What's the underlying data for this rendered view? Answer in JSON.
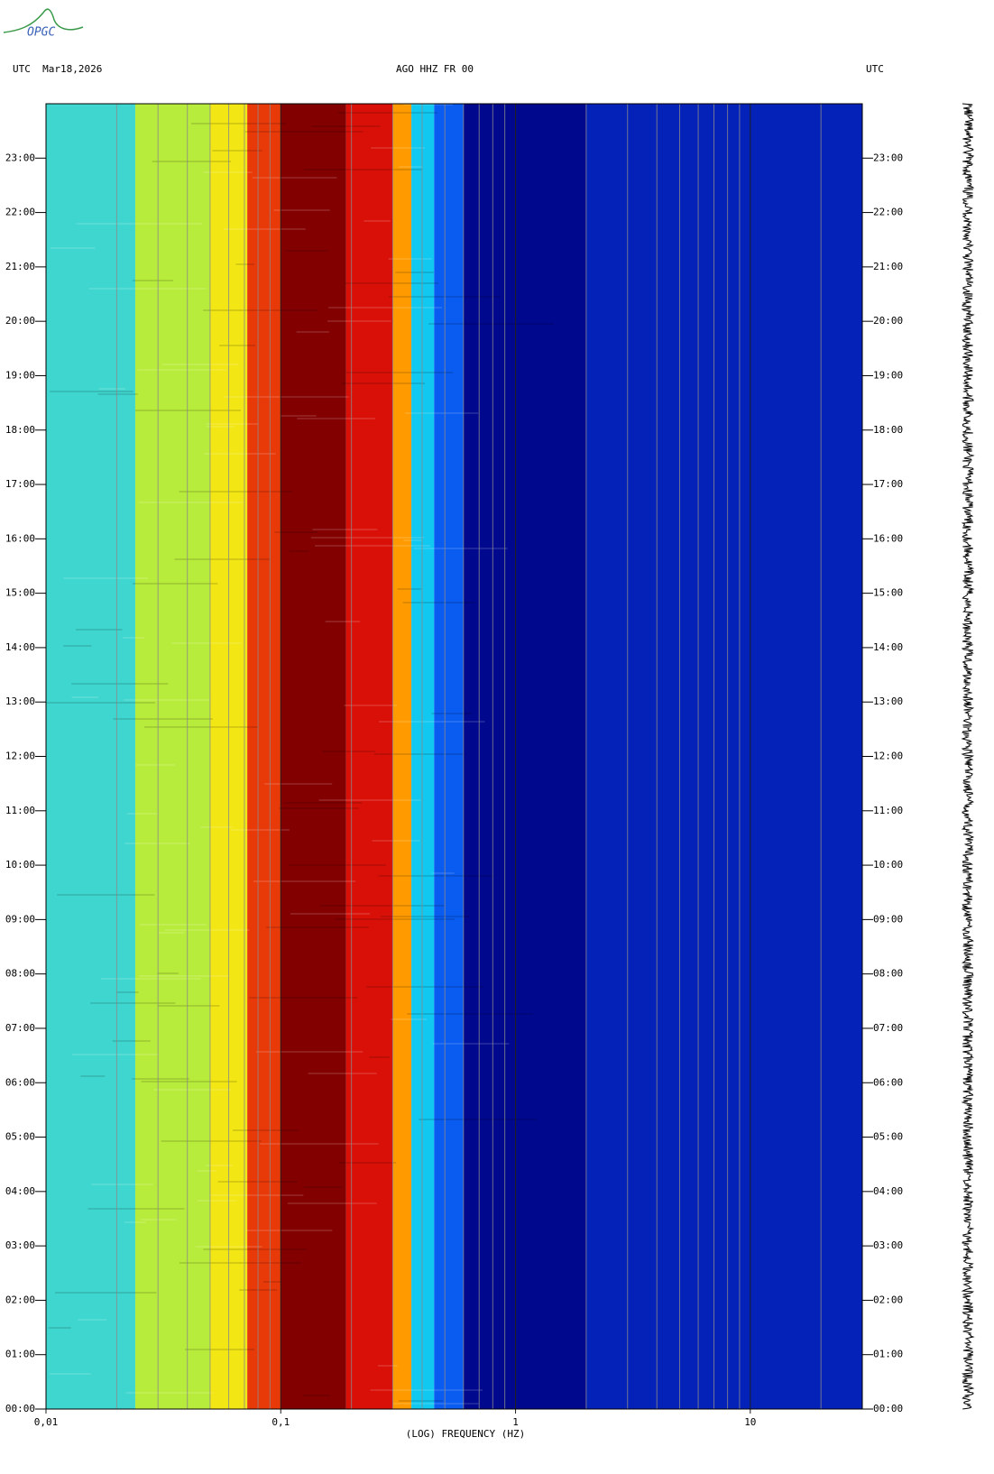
{
  "logo": "OPGC",
  "chart_data": {
    "type": "spectrogram",
    "left_header": "UTC  Mar18,2026",
    "title": "AGO HHZ FR 00",
    "right_header": "UTC",
    "xlabel": "(LOG) FREQUENCY (HZ)",
    "xscale": "log",
    "xlim": [
      0.01,
      30
    ],
    "xticks": [
      {
        "value": 0.01,
        "label": "0,01"
      },
      {
        "value": 0.1,
        "label": "0,1"
      },
      1,
      10
    ],
    "xminor": [
      0.02,
      0.03,
      0.04,
      0.05,
      0.06,
      0.07,
      0.08,
      0.09,
      0.2,
      0.3,
      0.4,
      0.5,
      0.6,
      0.7,
      0.8,
      0.9,
      2,
      3,
      4,
      5,
      6,
      7,
      8,
      9,
      20
    ],
    "ylim": [
      0,
      24
    ],
    "yticks": [
      {
        "value": 0,
        "label": "00:00"
      },
      {
        "value": 1,
        "label": "01:00"
      },
      {
        "value": 2,
        "label": "02:00"
      },
      {
        "value": 3,
        "label": "03:00"
      },
      {
        "value": 4,
        "label": "04:00"
      },
      {
        "value": 5,
        "label": "05:00"
      },
      {
        "value": 6,
        "label": "06:00"
      },
      {
        "value": 7,
        "label": "07:00"
      },
      {
        "value": 8,
        "label": "08:00"
      },
      {
        "value": 9,
        "label": "09:00"
      },
      {
        "value": 10,
        "label": "10:00"
      },
      {
        "value": 11,
        "label": "11:00"
      },
      {
        "value": 12,
        "label": "12:00"
      },
      {
        "value": 13,
        "label": "13:00"
      },
      {
        "value": 14,
        "label": "14:00"
      },
      {
        "value": 15,
        "label": "15:00"
      },
      {
        "value": 16,
        "label": "16:00"
      },
      {
        "value": 17,
        "label": "17:00"
      },
      {
        "value": 18,
        "label": "18:00"
      },
      {
        "value": 19,
        "label": "19:00"
      },
      {
        "value": 20,
        "label": "20:00"
      },
      {
        "value": 21,
        "label": "21:00"
      },
      {
        "value": 22,
        "label": "22:00"
      },
      {
        "value": 23,
        "label": "23:00"
      }
    ],
    "bands": [
      {
        "from": 0.01,
        "to": 0.024,
        "color": "#3fd6d0"
      },
      {
        "from": 0.024,
        "to": 0.05,
        "color": "#b8ec3c"
      },
      {
        "from": 0.05,
        "to": 0.072,
        "color": "#f2e614"
      },
      {
        "from": 0.072,
        "to": 0.1,
        "color": "#e83a08"
      },
      {
        "from": 0.1,
        "to": 0.19,
        "color": "#820000"
      },
      {
        "from": 0.19,
        "to": 0.3,
        "color": "#d81008"
      },
      {
        "from": 0.3,
        "to": 0.36,
        "color": "#ff9a00"
      },
      {
        "from": 0.36,
        "to": 0.45,
        "color": "#10c8f0"
      },
      {
        "from": 0.45,
        "to": 0.6,
        "color": "#0a5cf0"
      },
      {
        "from": 0.6,
        "to": 2,
        "color": "#00088e"
      },
      {
        "from": 2,
        "to": 30,
        "color": "#0422b8"
      }
    ]
  }
}
